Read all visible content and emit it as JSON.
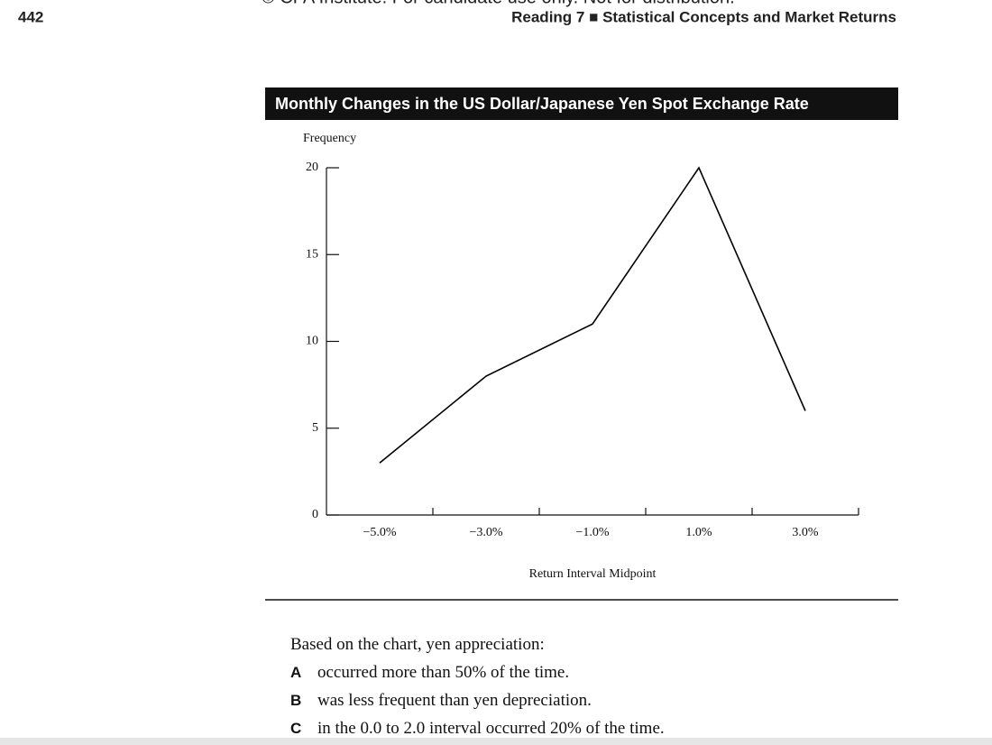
{
  "header": {
    "notice": "© CFA Institute. For candidate use only. Not for distribution.",
    "page_number": "442",
    "running_head": "Reading 7 ■ Statistical Concepts and Market Returns"
  },
  "chart_data": {
    "type": "line",
    "title": "Monthly Changes in the US Dollar/Japanese Yen Spot Exchange Rate",
    "y_label": "Frequency",
    "x_label": "Return Interval Midpoint",
    "categories": [
      "−5.0%",
      "−3.0%",
      "−1.0%",
      "1.0%",
      "3.0%"
    ],
    "values": [
      3,
      8,
      11,
      20,
      6
    ],
    "color": "#000000",
    "ylim": [
      0,
      20
    ],
    "yticks": [
      0,
      5,
      10,
      15,
      20
    ],
    "grid": false
  },
  "question": {
    "stem": "Based on the chart, yen appreciation:",
    "options": [
      {
        "letter": "A",
        "text": "occurred more than 50% of the time."
      },
      {
        "letter": "B",
        "text": "was less frequent than yen depreciation."
      },
      {
        "letter": "C",
        "text": "in the 0.0 to 2.0 interval occurred 20% of the time."
      }
    ]
  }
}
